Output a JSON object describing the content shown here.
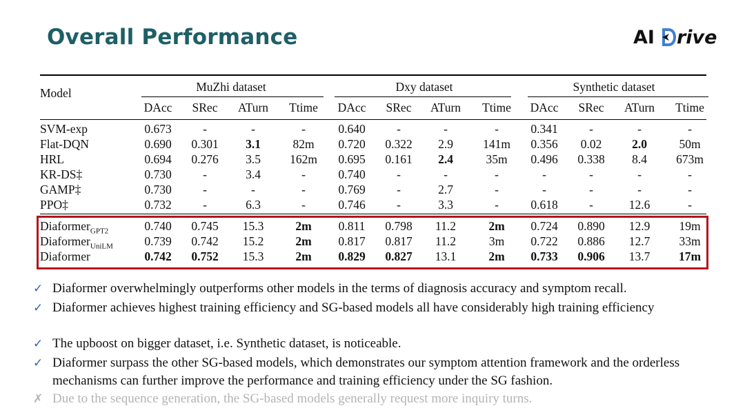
{
  "slide": {
    "title": "Overall Performance",
    "logo": {
      "prefix": "AI",
      "suffix": "rive",
      "icon": "drive-d-icon"
    }
  },
  "table": {
    "model_header": "Model",
    "groups": [
      "MuZhi dataset",
      "Dxy dataset",
      "Synthetic dataset"
    ],
    "metrics": [
      "DAcc",
      "SRec",
      "ATurn",
      "Ttime"
    ],
    "baseline_rows": [
      {
        "model": "SVM-exp",
        "sub": "",
        "cells": [
          {
            "v": "0.673"
          },
          {
            "v": "-"
          },
          {
            "v": "-"
          },
          {
            "v": "-"
          },
          {
            "v": "0.640"
          },
          {
            "v": "-"
          },
          {
            "v": "-"
          },
          {
            "v": "-"
          },
          {
            "v": "0.341"
          },
          {
            "v": "-"
          },
          {
            "v": "-"
          },
          {
            "v": "-"
          }
        ]
      },
      {
        "model": "Flat-DQN",
        "sub": "",
        "cells": [
          {
            "v": "0.690"
          },
          {
            "v": "0.301"
          },
          {
            "v": "3.1",
            "b": true
          },
          {
            "v": "82m"
          },
          {
            "v": "0.720"
          },
          {
            "v": "0.322"
          },
          {
            "v": "2.9"
          },
          {
            "v": "141m"
          },
          {
            "v": "0.356"
          },
          {
            "v": "0.02"
          },
          {
            "v": "2.0",
            "b": true
          },
          {
            "v": "50m"
          }
        ]
      },
      {
        "model": "HRL",
        "sub": "",
        "cells": [
          {
            "v": "0.694"
          },
          {
            "v": "0.276"
          },
          {
            "v": "3.5"
          },
          {
            "v": "162m"
          },
          {
            "v": "0.695"
          },
          {
            "v": "0.161"
          },
          {
            "v": "2.4",
            "b": true
          },
          {
            "v": "35m"
          },
          {
            "v": "0.496"
          },
          {
            "v": "0.338"
          },
          {
            "v": "8.4"
          },
          {
            "v": "673m"
          }
        ]
      },
      {
        "model": "KR-DS‡",
        "sub": "",
        "cells": [
          {
            "v": "0.730"
          },
          {
            "v": "-"
          },
          {
            "v": "3.4"
          },
          {
            "v": "-"
          },
          {
            "v": "0.740"
          },
          {
            "v": "-"
          },
          {
            "v": "-"
          },
          {
            "v": "-"
          },
          {
            "v": "-"
          },
          {
            "v": "-"
          },
          {
            "v": "-"
          },
          {
            "v": "-"
          }
        ]
      },
      {
        "model": "GAMP‡",
        "sub": "",
        "cells": [
          {
            "v": "0.730"
          },
          {
            "v": "-"
          },
          {
            "v": "-"
          },
          {
            "v": "-"
          },
          {
            "v": "0.769"
          },
          {
            "v": "-"
          },
          {
            "v": "2.7"
          },
          {
            "v": "-"
          },
          {
            "v": "-"
          },
          {
            "v": "-"
          },
          {
            "v": "-"
          },
          {
            "v": "-"
          }
        ]
      },
      {
        "model": "PPO‡",
        "sub": "",
        "cells": [
          {
            "v": "0.732"
          },
          {
            "v": "-"
          },
          {
            "v": "6.3"
          },
          {
            "v": "-"
          },
          {
            "v": "0.746"
          },
          {
            "v": "-"
          },
          {
            "v": "3.3"
          },
          {
            "v": "-"
          },
          {
            "v": "0.618"
          },
          {
            "v": "-"
          },
          {
            "v": "12.6"
          },
          {
            "v": "-"
          }
        ]
      }
    ],
    "diaformer_rows": [
      {
        "model": "Diaformer",
        "sub": "GPT2",
        "cells": [
          {
            "v": "0.740"
          },
          {
            "v": "0.745"
          },
          {
            "v": "15.3"
          },
          {
            "v": "2m",
            "b": true
          },
          {
            "v": "0.811"
          },
          {
            "v": "0.798"
          },
          {
            "v": "11.2"
          },
          {
            "v": "2m",
            "b": true
          },
          {
            "v": "0.724"
          },
          {
            "v": "0.890"
          },
          {
            "v": "12.9"
          },
          {
            "v": "19m"
          }
        ]
      },
      {
        "model": "Diaformer",
        "sub": "UniLM",
        "cells": [
          {
            "v": "0.739"
          },
          {
            "v": "0.742"
          },
          {
            "v": "15.2"
          },
          {
            "v": "2m",
            "b": true
          },
          {
            "v": "0.817"
          },
          {
            "v": "0.817"
          },
          {
            "v": "11.2"
          },
          {
            "v": "3m"
          },
          {
            "v": "0.722"
          },
          {
            "v": "0.886"
          },
          {
            "v": "12.7"
          },
          {
            "v": "33m"
          }
        ]
      },
      {
        "model": "Diaformer",
        "sub": "",
        "cells": [
          {
            "v": "0.742",
            "b": true
          },
          {
            "v": "0.752",
            "b": true
          },
          {
            "v": "15.3"
          },
          {
            "v": "2m",
            "b": true
          },
          {
            "v": "0.829",
            "b": true
          },
          {
            "v": "0.827",
            "b": true
          },
          {
            "v": "13.1"
          },
          {
            "v": "2m",
            "b": true
          },
          {
            "v": "0.733",
            "b": true
          },
          {
            "v": "0.906",
            "b": true
          },
          {
            "v": "13.7"
          },
          {
            "v": "17m",
            "b": true
          }
        ]
      }
    ]
  },
  "bullets": [
    {
      "mark": "✓",
      "text": "Diaformer overwhelmingly outperforms other models in the terms of diagnosis accuracy and symptom recall."
    },
    {
      "mark": "✓",
      "text": "Diaformer achieves highest training efficiency and SG-based models all have considerably high training efficiency"
    },
    {
      "mark": "✓",
      "text": "The upboost on bigger dataset, i.e. Synthetic dataset, is noticeable."
    },
    {
      "mark": "✓",
      "text": "Diaformer surpass the other SG-based models, which demonstrates our symptom attention framework and the orderless mechanisms can further improve the performance and training efficiency under the SG fashion."
    },
    {
      "mark": "✗",
      "text": "Due to the sequence generation, the SG-based models generally request more inquiry turns.",
      "faded": true
    }
  ]
}
